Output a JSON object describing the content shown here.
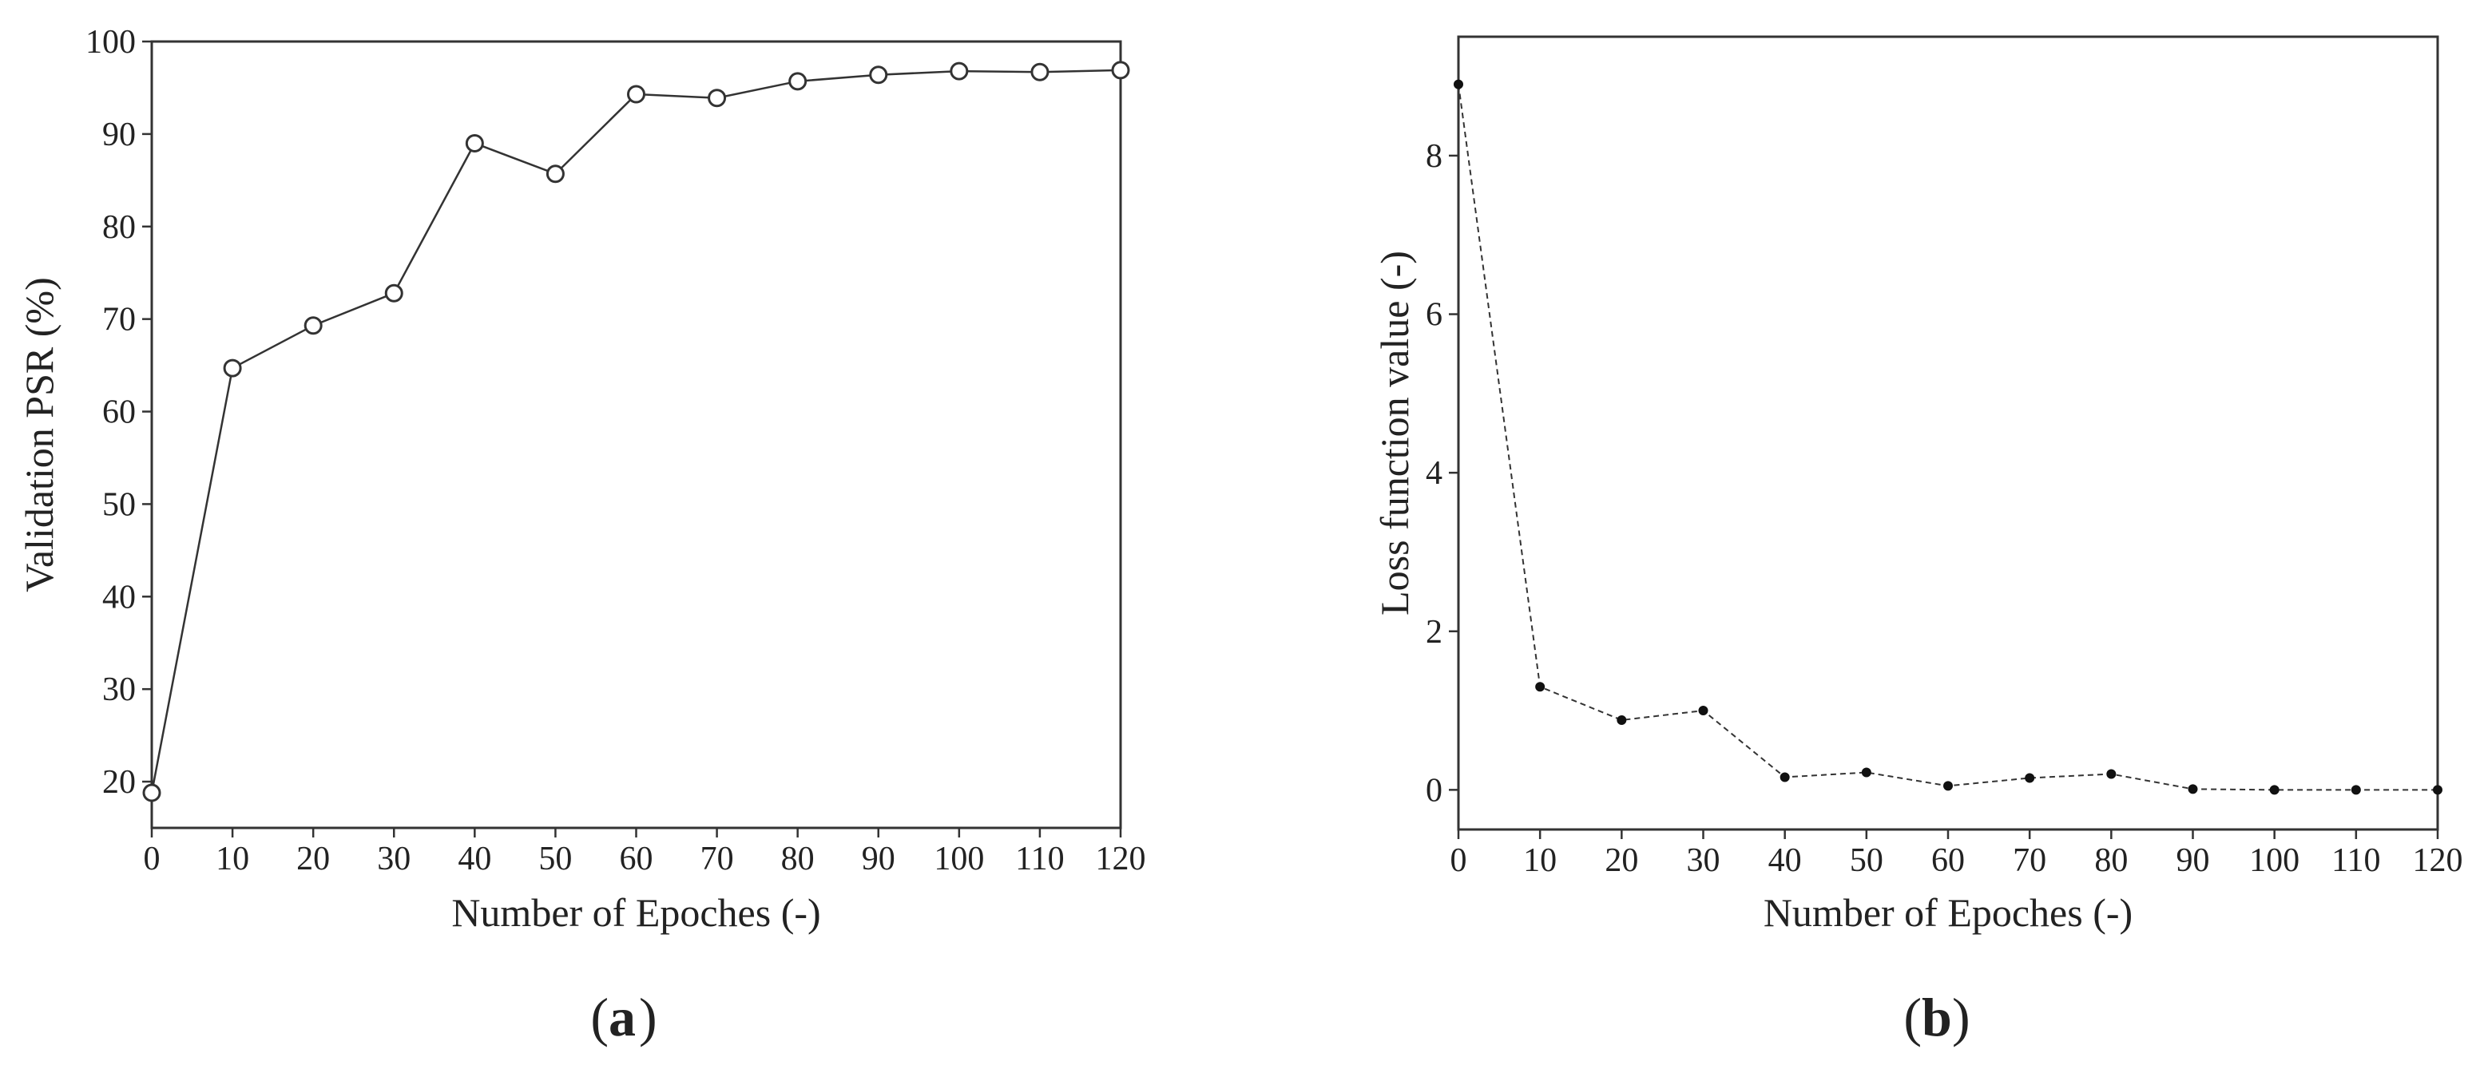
{
  "chart_data": [
    {
      "type": "line",
      "panel_label": "a",
      "xlabel": "Number of Epoches (-)",
      "ylabel": "Validation PSR (%)",
      "xlim": [
        0,
        120
      ],
      "ylim": [
        15,
        100
      ],
      "xticks": [
        0,
        10,
        20,
        30,
        40,
        50,
        60,
        70,
        80,
        90,
        100,
        110,
        120
      ],
      "yticks": [
        20,
        30,
        40,
        50,
        60,
        70,
        80,
        90,
        100
      ],
      "grid": false,
      "marker": "open-circle",
      "line_style": "solid",
      "series": [
        {
          "x": [
            0,
            10,
            20,
            30,
            40,
            50,
            60,
            70,
            80,
            90,
            100,
            110,
            120
          ],
          "values": [
            18.8,
            64.7,
            69.3,
            72.8,
            89.0,
            85.7,
            94.3,
            93.9,
            95.7,
            96.4,
            96.8,
            96.7,
            96.9
          ]
        }
      ],
      "colors": {
        "line": "#333333",
        "marker_edge": "#333333",
        "marker_fill": "#ffffff"
      }
    },
    {
      "type": "line",
      "panel_label": "b",
      "xlabel": "Number of Epoches (-)",
      "ylabel": "Loss function value (-)",
      "xlim": [
        0,
        120
      ],
      "ylim": [
        -0.5,
        9.5
      ],
      "xticks": [
        0,
        10,
        20,
        30,
        40,
        50,
        60,
        70,
        80,
        90,
        100,
        110,
        120
      ],
      "yticks": [
        0,
        2,
        4,
        6,
        8
      ],
      "grid": false,
      "marker": "filled-dot",
      "line_style": "dashed",
      "series": [
        {
          "x": [
            0,
            10,
            20,
            30,
            40,
            50,
            60,
            70,
            80,
            90,
            100,
            110,
            120
          ],
          "values": [
            8.9,
            1.3,
            0.88,
            1.0,
            0.16,
            0.22,
            0.05,
            0.15,
            0.2,
            0.01,
            0.0,
            0.0,
            0.0
          ]
        }
      ],
      "colors": {
        "line": "#333333",
        "marker_edge": "#111111",
        "marker_fill": "#111111"
      }
    }
  ]
}
